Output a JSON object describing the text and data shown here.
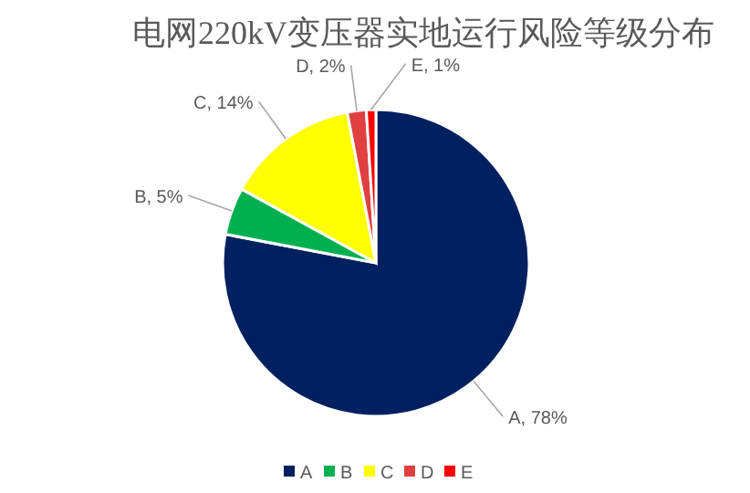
{
  "chart_data": {
    "type": "pie",
    "title": "电网220kV变压器实地运行风险等级分布",
    "categories": [
      "A",
      "B",
      "C",
      "D",
      "E"
    ],
    "values": [
      78,
      5,
      14,
      2,
      1
    ],
    "colors": [
      "#002060",
      "#00b050",
      "#ffff00",
      "#e04040",
      "#ff0000"
    ],
    "value_labels": [
      "A, 78%",
      "B, 5%",
      "C, 14%",
      "D, 2%",
      "E, 1%"
    ],
    "legend": "bottom"
  }
}
